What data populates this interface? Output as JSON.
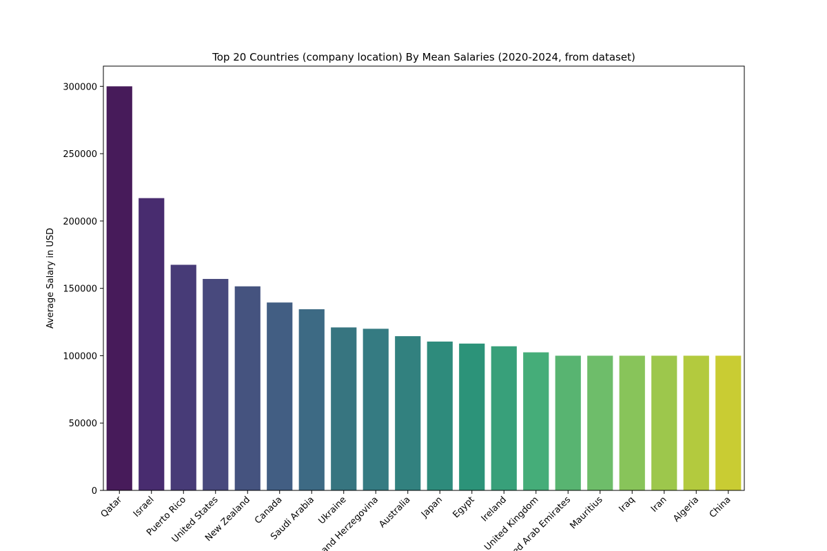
{
  "chart_data": {
    "type": "bar",
    "title": "Top 20 Countries (company location) By Mean Salaries (2020-2024, from dataset)",
    "xlabel": "",
    "ylabel": "Average Salary in USD",
    "categories": [
      "Qatar",
      "Israel",
      "Puerto Rico",
      "United States",
      "New Zealand",
      "Canada",
      "Saudi Arabia",
      "Ukraine",
      "Bosnia and Herzegovina",
      "Australia",
      "Japan",
      "Egypt",
      "Ireland",
      "United Kingdom",
      "United Arab Emirates",
      "Mauritius",
      "Iraq",
      "Iran",
      "Algeria",
      "China"
    ],
    "values": [
      300000,
      217000,
      167500,
      157000,
      151500,
      139500,
      134500,
      121000,
      120000,
      114500,
      110500,
      109000,
      107000,
      102500,
      100000,
      100000,
      100000,
      100000,
      100000,
      100000
    ],
    "colors": [
      "#471b5a",
      "#482c6f",
      "#473b77",
      "#48497d",
      "#45537f",
      "#425e83",
      "#3d6a84",
      "#377580",
      "#357b82",
      "#32817f",
      "#2e8b7c",
      "#2c9379",
      "#38a07a",
      "#45ad79",
      "#58b471",
      "#6ebd6a",
      "#88c45a",
      "#9dc74c",
      "#b3ca3e",
      "#c9cc33"
    ],
    "ylim": [
      0,
      315000
    ],
    "yticks": [
      0,
      50000,
      100000,
      150000,
      200000,
      250000,
      300000
    ],
    "ytick_labels": [
      "0",
      "50000",
      "100000",
      "150000",
      "200000",
      "250000",
      "300000"
    ],
    "grid": false,
    "legend": "none"
  }
}
